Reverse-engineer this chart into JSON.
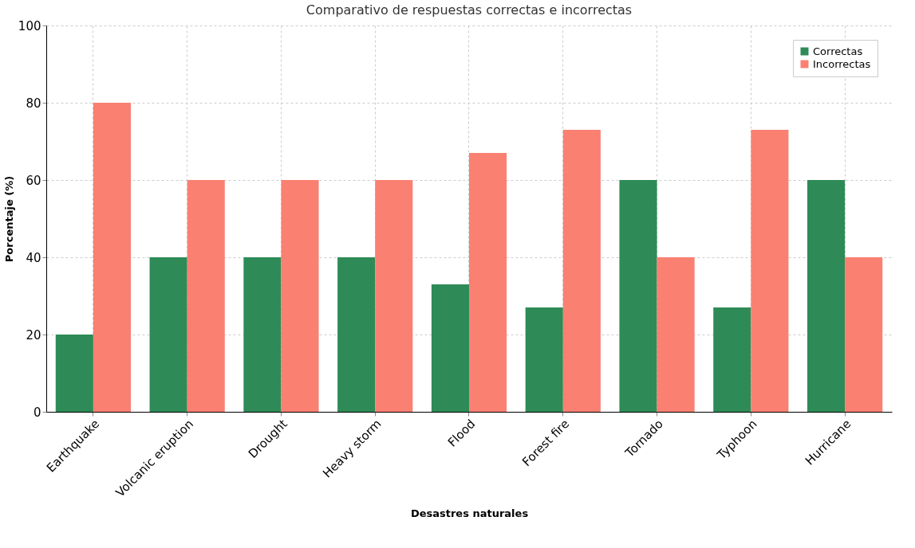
{
  "chart_data": {
    "type": "bar",
    "title": "Comparativo de respuestas correctas e incorrectas",
    "xlabel": "Desastres naturales",
    "ylabel": "Porcentaje (%)",
    "categories": [
      "Earthquake",
      "Volcanic eruption",
      "Drought",
      "Heavy storm",
      "Flood",
      "Forest fire",
      "Tornado",
      "Typhoon",
      "Hurricane"
    ],
    "series": [
      {
        "name": "Correctas",
        "color": "#2e8b57",
        "values": [
          20,
          40,
          40,
          40,
          33,
          27,
          60,
          27,
          60
        ]
      },
      {
        "name": "Incorrectas",
        "color": "#fa8072",
        "values": [
          80,
          60,
          60,
          60,
          67,
          73,
          40,
          73,
          40
        ]
      }
    ],
    "ylim": [
      0,
      100
    ],
    "yticks": [
      0,
      20,
      40,
      60,
      80,
      100
    ],
    "grid": true,
    "legend": "top right"
  }
}
